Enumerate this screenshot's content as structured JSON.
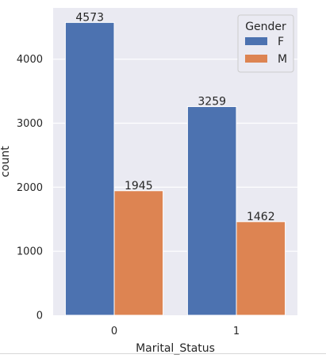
{
  "chart_data": {
    "type": "bar",
    "title": "",
    "xlabel": "Marital_Status",
    "ylabel": "count",
    "categories": [
      "0",
      "1"
    ],
    "series": [
      {
        "name": "F",
        "values": [
          4573,
          3259
        ]
      },
      {
        "name": "M",
        "values": [
          1945,
          1462
        ]
      }
    ],
    "ylim": [
      0,
      4800
    ],
    "yticks": [
      0,
      1000,
      2000,
      3000,
      4000
    ],
    "data_labels": true,
    "legend": {
      "title": "Gender",
      "position": "top-right"
    },
    "grid": true
  },
  "colors": {
    "background": "#eaeaf2",
    "grid": "#ffffff",
    "F": "#4c72b0",
    "M": "#dd8452"
  }
}
